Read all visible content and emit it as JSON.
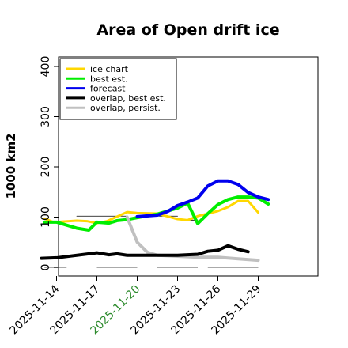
{
  "chart_data": {
    "type": "line",
    "title": "Area of Open drift ice",
    "ylabel": "1000 km2",
    "xlabel": "",
    "ylim": [
      -5,
      420
    ],
    "yticks": [
      0,
      100,
      200,
      300,
      400
    ],
    "xlim": [
      0,
      13.2
    ],
    "x_ticks": [
      {
        "pos": 1,
        "label": "2025-11-14",
        "color": "#000000"
      },
      {
        "pos": 3,
        "label": "2025-11-17",
        "color": "#000000"
      },
      {
        "pos": 5,
        "label": "2025-11-20",
        "color": "#2e8b2e"
      },
      {
        "pos": 7,
        "label": "2025-11-23",
        "color": "#000000"
      },
      {
        "pos": 9,
        "label": "2025-11-26",
        "color": "#000000"
      },
      {
        "pos": 11,
        "label": "2025-11-29",
        "color": "#000000"
      }
    ],
    "legend_location": "upper-left",
    "series": [
      {
        "name": "ice chart",
        "color": "#ffd700",
        "width": 3,
        "points": [
          [
            0.4,
            97
          ],
          [
            0.85,
            90
          ],
          [
            2,
            93
          ],
          [
            2.5,
            92
          ],
          [
            3,
            88
          ],
          [
            3.5,
            92
          ],
          [
            4.5,
            110
          ],
          [
            5,
            108
          ],
          [
            6,
            107
          ],
          [
            7,
            96
          ],
          [
            7.5,
            94
          ],
          [
            8,
            102
          ],
          [
            9,
            112
          ],
          [
            9.5,
            120
          ],
          [
            10,
            132
          ],
          [
            10.5,
            132
          ],
          [
            11,
            109
          ]
        ]
      },
      {
        "name": "best est.",
        "color": "#00ee00",
        "width": 4,
        "points": [
          [
            0.4,
            90
          ],
          [
            1,
            90
          ],
          [
            1.5,
            84
          ],
          [
            2,
            78
          ],
          [
            2.6,
            74
          ],
          [
            3,
            90
          ],
          [
            3.6,
            88
          ],
          [
            4,
            93
          ],
          [
            4.5,
            95
          ],
          [
            5,
            99
          ],
          [
            6,
            106
          ],
          [
            7,
            118
          ],
          [
            7.5,
            128
          ],
          [
            8,
            87
          ],
          [
            8.5,
            107
          ],
          [
            9,
            125
          ],
          [
            9.5,
            135
          ],
          [
            10,
            140
          ],
          [
            10.5,
            140
          ],
          [
            11,
            138
          ],
          [
            11.5,
            126
          ]
        ]
      },
      {
        "name": "forecast",
        "color": "#0000ee",
        "width": 4,
        "points": [
          [
            5,
            101
          ],
          [
            6,
            104
          ],
          [
            6.5,
            111
          ],
          [
            7,
            123
          ],
          [
            7.5,
            130
          ],
          [
            8,
            138
          ],
          [
            8.5,
            162
          ],
          [
            9,
            172
          ],
          [
            9.5,
            172
          ],
          [
            10,
            165
          ],
          [
            10.5,
            149
          ],
          [
            11,
            140
          ],
          [
            11.5,
            135
          ]
        ]
      },
      {
        "name": "overlap, best est.",
        "color": "#000000",
        "width": 4,
        "points": [
          [
            0.25,
            18
          ],
          [
            1,
            19
          ],
          [
            3,
            29
          ],
          [
            3.6,
            25
          ],
          [
            4,
            27
          ],
          [
            4.5,
            24
          ],
          [
            5,
            24
          ],
          [
            5.5,
            24
          ],
          [
            6,
            24
          ],
          [
            7,
            24
          ],
          [
            8,
            26
          ],
          [
            8.5,
            32
          ],
          [
            9,
            34
          ],
          [
            9.5,
            43
          ],
          [
            10,
            36
          ],
          [
            10.5,
            31
          ]
        ]
      },
      {
        "name": "overlap, persist.",
        "color": "#c0c0c0",
        "width": 4,
        "points": [
          [
            4.5,
            100
          ],
          [
            5,
            50
          ],
          [
            5.5,
            30
          ],
          [
            6,
            24
          ],
          [
            7,
            22
          ],
          [
            8,
            20
          ],
          [
            9,
            20
          ],
          [
            10,
            17
          ],
          [
            11,
            14
          ]
        ]
      }
    ],
    "extra_lines": [
      {
        "color": "#000000",
        "width": 1,
        "points": [
          [
            1,
            19
          ],
          [
            3,
            29
          ]
        ]
      },
      {
        "color": "#000000",
        "width": 1,
        "points": [
          [
            6,
            24
          ],
          [
            8,
            26
          ]
        ]
      },
      {
        "color": "#00ee00",
        "width": 1,
        "points": [
          [
            4.5,
            95
          ],
          [
            5,
            99
          ],
          [
            6,
            106
          ]
        ]
      },
      {
        "color": "#ffd700",
        "width": 1,
        "points": [
          [
            1,
            90
          ],
          [
            2,
            93
          ]
        ]
      },
      {
        "color": "#000000",
        "width": 0.8,
        "points": [
          [
            2,
            102
          ],
          [
            4.5,
            102
          ]
        ]
      },
      {
        "color": "#000000",
        "width": 0.8,
        "points": [
          [
            6,
            102
          ],
          [
            7,
            102
          ]
        ]
      },
      {
        "color": "#000000",
        "width": 0.8,
        "points": [
          [
            7.3,
            94
          ],
          [
            8,
            94
          ]
        ]
      }
    ],
    "bottom_segments": [
      [
        0.4,
        1.5
      ],
      [
        3,
        5
      ],
      [
        6,
        8
      ],
      [
        8.5,
        11
      ]
    ]
  }
}
